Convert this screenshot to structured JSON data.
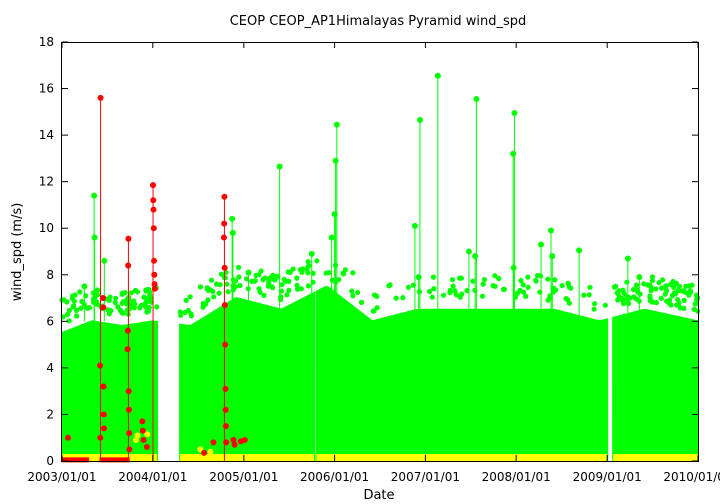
{
  "chart_data": {
    "type": "scatter",
    "title": "CEOP CEOP_AP1Himalayas Pyramid  wind_spd",
    "xlabel": "Date",
    "ylabel": "wind_spd (m/s)",
    "xlim": [
      "2003-01-01",
      "2010-01-01"
    ],
    "ylim": [
      0,
      18
    ],
    "y_ticks": [
      0,
      2,
      4,
      6,
      8,
      10,
      12,
      14,
      16,
      18
    ],
    "x_ticks": [
      "2003/01/01",
      "2004/01/01",
      "2005/01/01",
      "2006/01/01",
      "2007/01/01",
      "2008/01/01",
      "2009/01/01",
      "2010/01/01"
    ],
    "grid": false,
    "legend": "none",
    "series": [
      {
        "color": "#00ff00",
        "marker": "dot",
        "segments": [
          {
            "start": "2003-01-01",
            "end": "2004-01-18"
          },
          {
            "start": "2004-04-20",
            "end": "2005-10-10"
          },
          {
            "start": "2005-10-20",
            "end": "2009-01-01"
          },
          {
            "start": "2009-01-25",
            "end": "2010-01-01"
          }
        ],
        "envelope": [
          {
            "x": "2003-01-01",
            "y": 5.5
          },
          {
            "x": "2003-05-01",
            "y": 6.0
          },
          {
            "x": "2003-09-01",
            "y": 5.8
          },
          {
            "x": "2004-01-01",
            "y": 6.0
          },
          {
            "x": "2004-06-01",
            "y": 5.8
          },
          {
            "x": "2004-12-01",
            "y": 7.0
          },
          {
            "x": "2005-06-01",
            "y": 6.5
          },
          {
            "x": "2005-12-01",
            "y": 7.5
          },
          {
            "x": "2006-06-01",
            "y": 6.0
          },
          {
            "x": "2006-12-01",
            "y": 6.5
          },
          {
            "x": "2007-06-01",
            "y": 6.5
          },
          {
            "x": "2007-12-01",
            "y": 6.5
          },
          {
            "x": "2008-06-01",
            "y": 6.5
          },
          {
            "x": "2008-12-01",
            "y": 6.0
          },
          {
            "x": "2009-06-01",
            "y": 6.5
          },
          {
            "x": "2010-01-01",
            "y": 6.0
          }
        ],
        "spikes": [
          {
            "x": "2003-05-10",
            "y": 11.4
          },
          {
            "x": "2003-05-12",
            "y": 9.6
          },
          {
            "x": "2003-06-20",
            "y": 8.6
          },
          {
            "x": "2003-04-01",
            "y": 7.5
          },
          {
            "x": "2004-11-15",
            "y": 10.4
          },
          {
            "x": "2004-11-18",
            "y": 9.8
          },
          {
            "x": "2005-01-20",
            "y": 8.1
          },
          {
            "x": "2005-05-25",
            "y": 12.65
          },
          {
            "x": "2005-10-01",
            "y": 8.9
          },
          {
            "x": "2006-01-10",
            "y": 14.45
          },
          {
            "x": "2006-01-05",
            "y": 12.9
          },
          {
            "x": "2006-01-01",
            "y": 10.6
          },
          {
            "x": "2005-12-20",
            "y": 9.6
          },
          {
            "x": "2006-11-20",
            "y": 10.1
          },
          {
            "x": "2006-12-10",
            "y": 14.65
          },
          {
            "x": "2006-12-05",
            "y": 7.9
          },
          {
            "x": "2007-02-20",
            "y": 16.55
          },
          {
            "x": "2007-06-25",
            "y": 9.0
          },
          {
            "x": "2007-07-25",
            "y": 15.55
          },
          {
            "x": "2007-07-20",
            "y": 8.8
          },
          {
            "x": "2007-12-25",
            "y": 14.95
          },
          {
            "x": "2007-12-20",
            "y": 13.2
          },
          {
            "x": "2007-12-22",
            "y": 8.3
          },
          {
            "x": "2008-04-10",
            "y": 9.3
          },
          {
            "x": "2008-05-20",
            "y": 9.9
          },
          {
            "x": "2008-05-25",
            "y": 8.8
          },
          {
            "x": "2008-09-10",
            "y": 9.05
          },
          {
            "x": "2009-03-25",
            "y": 8.7
          },
          {
            "x": "2009-05-10",
            "y": 7.9
          }
        ]
      },
      {
        "color": "#ffff00",
        "marker": "dot",
        "segments": [
          {
            "start": "2003-01-01",
            "end": "2004-01-18"
          },
          {
            "start": "2004-04-20",
            "end": "2005-10-10"
          },
          {
            "start": "2005-10-20",
            "end": "2009-01-01"
          },
          {
            "start": "2009-01-25",
            "end": "2010-01-01"
          }
        ],
        "level": 0.3,
        "points": [
          {
            "x": "2003-11-01",
            "y": 1.1
          },
          {
            "x": "2003-10-25",
            "y": 0.9
          },
          {
            "x": "2003-12-10",
            "y": 1.15
          },
          {
            "x": "2004-07-10",
            "y": 0.5
          },
          {
            "x": "2004-08-20",
            "y": 0.4
          }
        ]
      },
      {
        "color": "#ff0000",
        "marker": "dot",
        "spikes": [
          {
            "x": "2003-06-05",
            "y": 15.6
          },
          {
            "x": "2003-06-03",
            "y": 4.1
          },
          {
            "x": "2003-06-04",
            "y": 1.0
          },
          {
            "x": "2003-06-15",
            "y": 7.0
          },
          {
            "x": "2003-06-16",
            "y": 6.6
          },
          {
            "x": "2003-06-17",
            "y": 3.2
          },
          {
            "x": "2003-06-18",
            "y": 2.0
          },
          {
            "x": "2003-06-19",
            "y": 1.4
          },
          {
            "x": "2003-09-25",
            "y": 9.55
          },
          {
            "x": "2003-09-24",
            "y": 8.4
          },
          {
            "x": "2003-09-23",
            "y": 5.6
          },
          {
            "x": "2003-09-22",
            "y": 4.8
          },
          {
            "x": "2003-09-26",
            "y": 3.0
          },
          {
            "x": "2003-09-27",
            "y": 2.2
          },
          {
            "x": "2003-09-28",
            "y": 1.2
          },
          {
            "x": "2003-09-29",
            "y": 0.5
          },
          {
            "x": "2003-11-20",
            "y": 1.7
          },
          {
            "x": "2003-11-22",
            "y": 1.3
          },
          {
            "x": "2003-11-25",
            "y": 0.9
          },
          {
            "x": "2003-12-08",
            "y": 0.6
          },
          {
            "x": "2004-01-02",
            "y": 11.85
          },
          {
            "x": "2004-01-03",
            "y": 11.2
          },
          {
            "x": "2004-01-04",
            "y": 10.8
          },
          {
            "x": "2004-01-05",
            "y": 10.0
          },
          {
            "x": "2004-01-06",
            "y": 8.6
          },
          {
            "x": "2004-01-07",
            "y": 8.0
          },
          {
            "x": "2004-01-08",
            "y": 7.6
          },
          {
            "x": "2004-01-09",
            "y": 7.4
          },
          {
            "x": "2004-10-15",
            "y": 11.35
          },
          {
            "x": "2004-10-14",
            "y": 10.2
          },
          {
            "x": "2004-10-13",
            "y": 9.6
          },
          {
            "x": "2004-10-16",
            "y": 8.3
          },
          {
            "x": "2004-10-17",
            "y": 6.7
          },
          {
            "x": "2004-10-18",
            "y": 5.0
          },
          {
            "x": "2004-10-19",
            "y": 3.1
          },
          {
            "x": "2004-10-20",
            "y": 2.2
          },
          {
            "x": "2004-10-21",
            "y": 1.5
          },
          {
            "x": "2004-10-22",
            "y": 0.8
          },
          {
            "x": "2004-07-25",
            "y": 0.35
          },
          {
            "x": "2004-09-01",
            "y": 0.8
          },
          {
            "x": "2004-11-20",
            "y": 0.9
          },
          {
            "x": "2004-11-25",
            "y": 0.7
          },
          {
            "x": "2004-12-20",
            "y": 0.85
          },
          {
            "x": "2005-01-05",
            "y": 0.9
          },
          {
            "x": "2003-01-25",
            "y": 1.0
          }
        ],
        "baseline": [
          {
            "start": "2003-01-01",
            "end": "2003-04-20",
            "y": 0.05
          },
          {
            "start": "2003-06-01",
            "end": "2003-09-30",
            "y": 0.05
          }
        ]
      }
    ]
  }
}
